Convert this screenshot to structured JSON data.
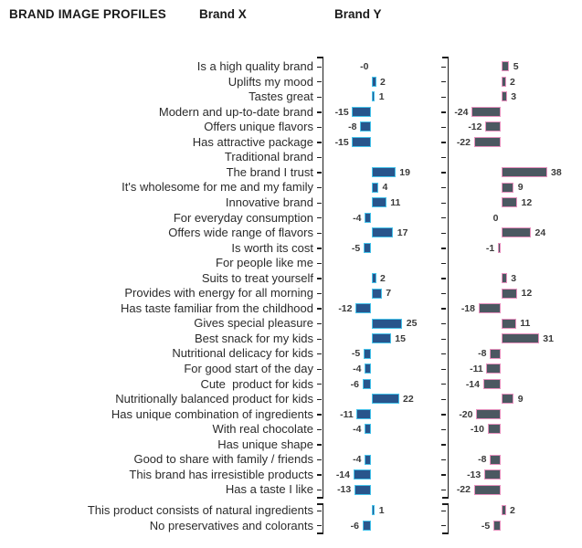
{
  "header": {
    "title": "BRAND IMAGE PROFILES",
    "brand_x": "Brand X",
    "brand_y": "Brand Y"
  },
  "colors": {
    "brand_x_fill": "#28558C",
    "brand_x_border": "#46C3EB",
    "brand_y_fill": "#4B5861",
    "brand_y_border": "#E691BE",
    "axis": "#1c1c1c",
    "value_text": "#3a3a3a",
    "label_text": "#2b2b2b"
  },
  "chart_data": {
    "type": "bar",
    "orientation": "horizontal",
    "title": "BRAND IMAGE PROFILES",
    "legend_entries": [
      "Brand X",
      "Brand Y"
    ],
    "value_labels": "shown at bar ends",
    "axis_style": "bracket with ticks, no numeric scale shown",
    "sections": [
      {
        "name": "main",
        "categories": [
          "Is a high quality brand",
          "Uplifts my mood",
          "Tastes great",
          "Modern and up-to-date brand",
          "Offers unique flavors",
          "Has attractive package",
          "Traditional brand",
          "The brand I trust",
          "It's wholesome for me and my family",
          "Innovative brand",
          "For everyday consumption",
          "Offers wide range of flavors",
          "Is worth its cost",
          "For people like me",
          "Suits to treat yourself",
          "Provides with energy for all morning",
          "Has taste familiar from the childhood",
          "Gives special pleasure",
          "Best snack for my kids",
          "Nutritional delicacy for kids",
          "For good start of the day",
          "Cute  product for kids",
          "Nutritionally balanced product for kids",
          "Has unique combination of ingredients",
          "With real chocolate",
          "Has unique shape",
          "Good to share with family / friends",
          "This brand has irresistible products",
          "Has a taste I like"
        ],
        "series": [
          {
            "name": "Brand X",
            "values": [
              "-0",
              "2",
              "1",
              "-15",
              "-8",
              "-15",
              null,
              "19",
              "4",
              "11",
              "-4",
              "17",
              "-5",
              null,
              "2",
              "7",
              "-12",
              "25",
              "15",
              "-5",
              "-4",
              "-6",
              "22",
              "-11",
              "-4",
              null,
              "-4",
              "-14",
              "-13"
            ]
          },
          {
            "name": "Brand Y",
            "values": [
              "5",
              "2",
              "3",
              "-24",
              "-12",
              "-22",
              null,
              "38",
              "9",
              "12",
              "0",
              "24",
              "-1",
              null,
              "3",
              "12",
              "-18",
              "11",
              "31",
              "-8",
              "-11",
              "-14",
              "9",
              "-20",
              "-10",
              null,
              "-8",
              "-13",
              "-22"
            ]
          }
        ]
      },
      {
        "name": "footer",
        "categories": [
          "This product consists of natural ingredients",
          "No preservatives and colorants"
        ],
        "series": [
          {
            "name": "Brand X",
            "values": [
              "1",
              "-6"
            ]
          },
          {
            "name": "Brand Y",
            "values": [
              "2",
              "-5"
            ]
          }
        ]
      }
    ]
  }
}
